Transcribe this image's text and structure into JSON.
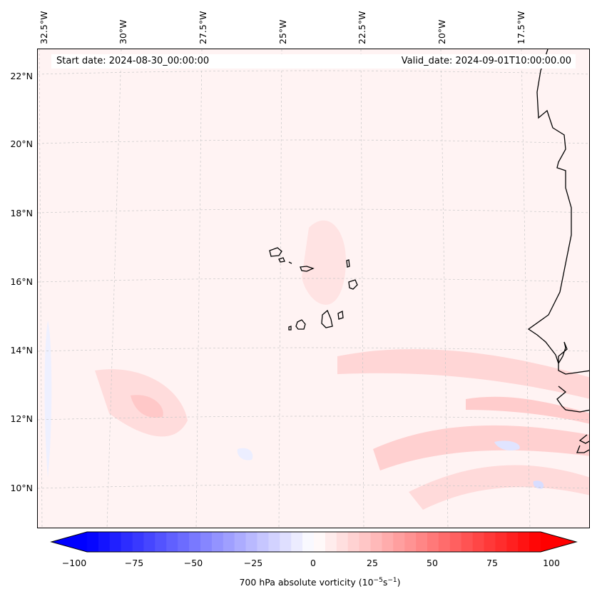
{
  "header": {
    "start_date": "Start date: 2024-08-30_00:00:00",
    "valid_date": "Valid_date: 2024-09-01T10:00:00.00"
  },
  "map": {
    "longitude_labels": [
      "32.5°W",
      "30°W",
      "27.5°W",
      "25°W",
      "22.5°W",
      "20°W",
      "17.5°W"
    ],
    "latitude_labels": [
      "22°N",
      "20°N",
      "18°N",
      "16°N",
      "14°N",
      "12°N",
      "10°N"
    ],
    "features": [
      "Cabo Verde islands",
      "West African coastline"
    ]
  },
  "colorbar": {
    "ticks": [
      "−100",
      "−75",
      "−50",
      "−25",
      "0",
      "25",
      "50",
      "75",
      "100"
    ],
    "tick_values": [
      -100,
      -75,
      -50,
      -25,
      0,
      25,
      50,
      75,
      100
    ],
    "range": [
      -100,
      100
    ],
    "levels": 41,
    "colormap": "bwr",
    "label_text": "700 hPa absolute vorticity (10",
    "label_exp1": "−5",
    "label_mid": "s",
    "label_exp2": "−1",
    "label_close": ")"
  },
  "colors": {
    "negative": "#0000ff",
    "zero": "#ffffff",
    "positive": "#ff0000",
    "coastline": "#000000",
    "gridline": "#bbbbbb"
  }
}
